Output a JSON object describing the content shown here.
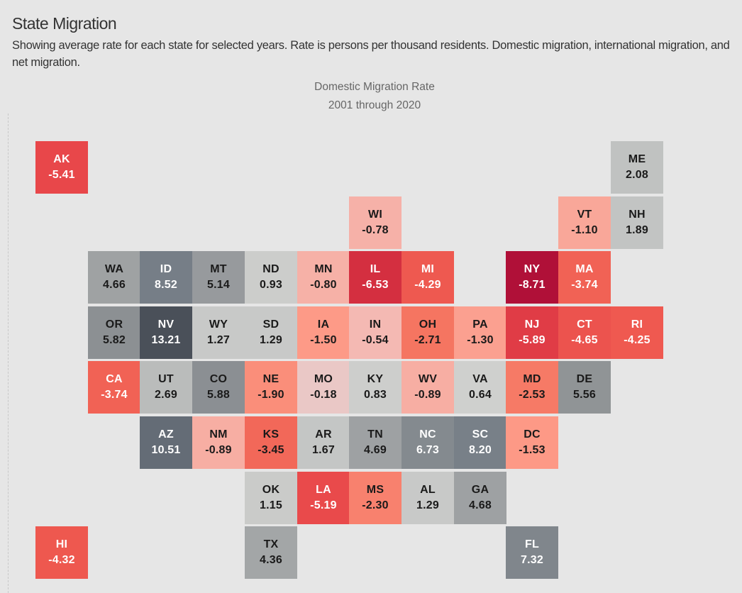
{
  "header": {
    "title": "State Migration",
    "subtitle": "Showing average rate for each state for selected years. Rate is persons per thousand residents. Domestic migration, international migration, and net migration."
  },
  "chart_data": {
    "type": "heatmap",
    "subtype": "tile-grid map",
    "title": "Domestic Migration Rate",
    "subtitle": "2001 through 2020",
    "color_scale": {
      "negative_max": "#b01038",
      "negative_mid": "#f57561",
      "zero": "#d0d0ce",
      "positive_max": "#4a5059"
    },
    "tiles": [
      {
        "state": "AK",
        "value": -5.41,
        "row": 0,
        "col": 0
      },
      {
        "state": "ME",
        "value": 2.08,
        "row": 0,
        "col": 11
      },
      {
        "state": "WI",
        "value": -0.78,
        "row": 1,
        "col": 6
      },
      {
        "state": "VT",
        "value": -1.1,
        "row": 1,
        "col": 10
      },
      {
        "state": "NH",
        "value": 1.89,
        "row": 1,
        "col": 11
      },
      {
        "state": "WA",
        "value": 4.66,
        "row": 2,
        "col": 1
      },
      {
        "state": "ID",
        "value": 8.52,
        "row": 2,
        "col": 2
      },
      {
        "state": "MT",
        "value": 5.14,
        "row": 2,
        "col": 3
      },
      {
        "state": "ND",
        "value": 0.93,
        "row": 2,
        "col": 4
      },
      {
        "state": "MN",
        "value": -0.8,
        "row": 2,
        "col": 5
      },
      {
        "state": "IL",
        "value": -6.53,
        "row": 2,
        "col": 6
      },
      {
        "state": "MI",
        "value": -4.29,
        "row": 2,
        "col": 7
      },
      {
        "state": "NY",
        "value": -8.71,
        "row": 2,
        "col": 9
      },
      {
        "state": "MA",
        "value": -3.74,
        "row": 2,
        "col": 10
      },
      {
        "state": "OR",
        "value": 5.82,
        "row": 3,
        "col": 1
      },
      {
        "state": "NV",
        "value": 13.21,
        "row": 3,
        "col": 2
      },
      {
        "state": "WY",
        "value": 1.27,
        "row": 3,
        "col": 3
      },
      {
        "state": "SD",
        "value": 1.29,
        "row": 3,
        "col": 4
      },
      {
        "state": "IA",
        "value": -1.5,
        "row": 3,
        "col": 5
      },
      {
        "state": "IN",
        "value": -0.54,
        "row": 3,
        "col": 6
      },
      {
        "state": "OH",
        "value": -2.71,
        "row": 3,
        "col": 7
      },
      {
        "state": "PA",
        "value": -1.3,
        "row": 3,
        "col": 8
      },
      {
        "state": "NJ",
        "value": -5.89,
        "row": 3,
        "col": 9
      },
      {
        "state": "CT",
        "value": -4.65,
        "row": 3,
        "col": 10
      },
      {
        "state": "RI",
        "value": -4.25,
        "row": 3,
        "col": 11
      },
      {
        "state": "CA",
        "value": -3.74,
        "row": 4,
        "col": 1
      },
      {
        "state": "UT",
        "value": 2.69,
        "row": 4,
        "col": 2
      },
      {
        "state": "CO",
        "value": 5.88,
        "row": 4,
        "col": 3
      },
      {
        "state": "NE",
        "value": -1.9,
        "row": 4,
        "col": 4
      },
      {
        "state": "MO",
        "value": -0.18,
        "row": 4,
        "col": 5
      },
      {
        "state": "KY",
        "value": 0.83,
        "row": 4,
        "col": 6
      },
      {
        "state": "WV",
        "value": -0.89,
        "row": 4,
        "col": 7
      },
      {
        "state": "VA",
        "value": 0.64,
        "row": 4,
        "col": 8
      },
      {
        "state": "MD",
        "value": -2.53,
        "row": 4,
        "col": 9
      },
      {
        "state": "DE",
        "value": 5.56,
        "row": 4,
        "col": 10
      },
      {
        "state": "AZ",
        "value": 10.51,
        "row": 5,
        "col": 2
      },
      {
        "state": "NM",
        "value": -0.89,
        "row": 5,
        "col": 3
      },
      {
        "state": "KS",
        "value": -3.45,
        "row": 5,
        "col": 4
      },
      {
        "state": "AR",
        "value": 1.67,
        "row": 5,
        "col": 5
      },
      {
        "state": "TN",
        "value": 4.69,
        "row": 5,
        "col": 6
      },
      {
        "state": "NC",
        "value": 6.73,
        "row": 5,
        "col": 7
      },
      {
        "state": "SC",
        "value": 8.2,
        "row": 5,
        "col": 8
      },
      {
        "state": "DC",
        "value": -1.53,
        "row": 5,
        "col": 9
      },
      {
        "state": "OK",
        "value": 1.15,
        "row": 6,
        "col": 4
      },
      {
        "state": "LA",
        "value": -5.19,
        "row": 6,
        "col": 5
      },
      {
        "state": "MS",
        "value": -2.3,
        "row": 6,
        "col": 6
      },
      {
        "state": "AL",
        "value": 1.29,
        "row": 6,
        "col": 7
      },
      {
        "state": "GA",
        "value": 4.68,
        "row": 6,
        "col": 8
      },
      {
        "state": "HI",
        "value": -4.32,
        "row": 7,
        "col": 0
      },
      {
        "state": "TX",
        "value": 4.36,
        "row": 7,
        "col": 4
      },
      {
        "state": "FL",
        "value": 7.32,
        "row": 7,
        "col": 9
      }
    ]
  }
}
